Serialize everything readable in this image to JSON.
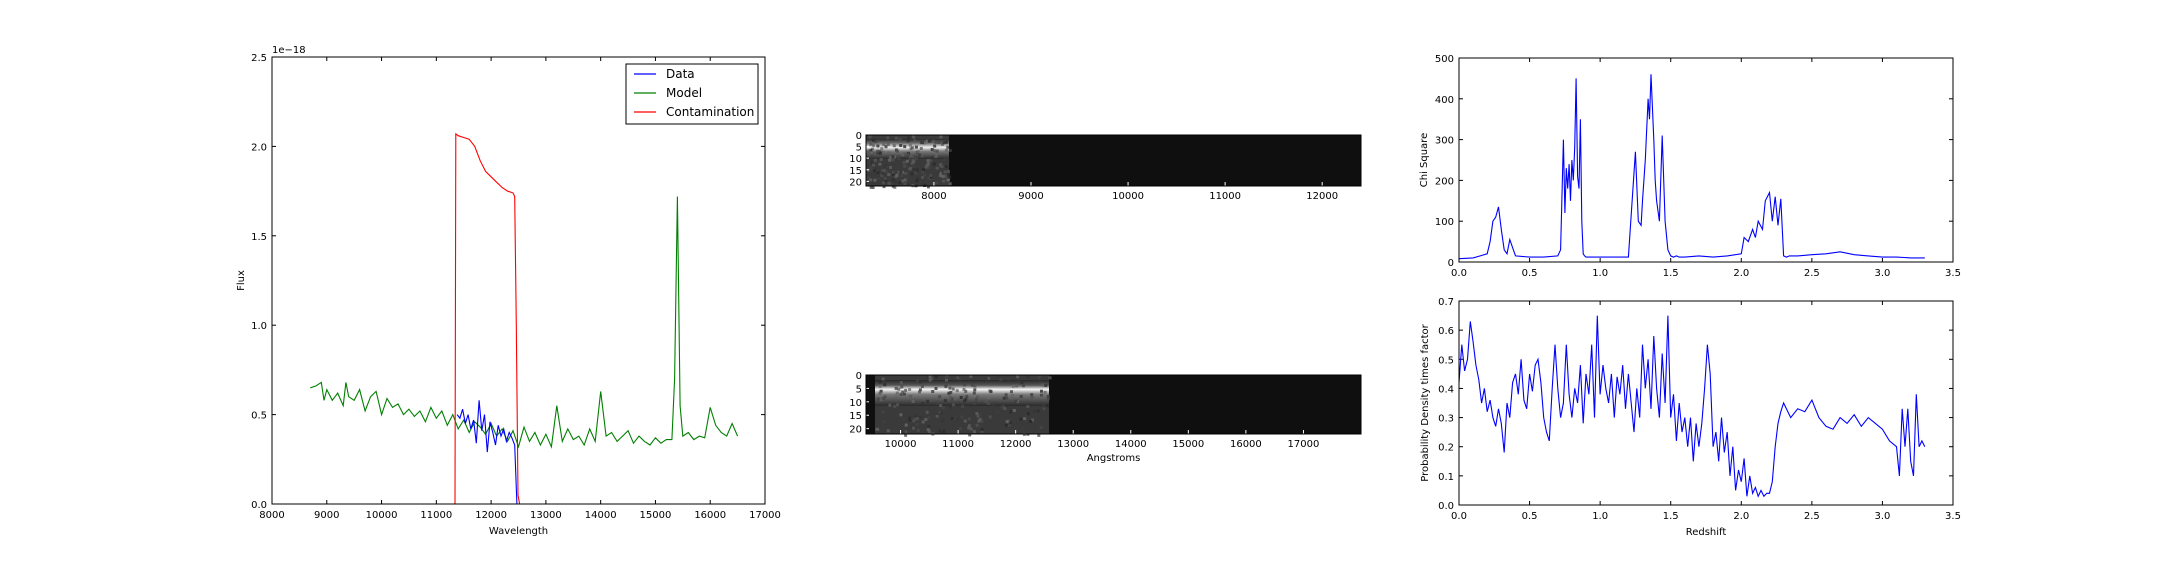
{
  "chart_data": [
    {
      "type": "line",
      "panel": "spectrum",
      "xlabel": "Wavelength",
      "ylabel": "Flux",
      "offset_label": "1e−18",
      "xlim": [
        8000,
        17000
      ],
      "ylim": [
        0,
        2.5
      ],
      "xticks": [
        8000,
        9000,
        10000,
        11000,
        12000,
        13000,
        14000,
        15000,
        16000,
        17000
      ],
      "yticks": [
        0.0,
        0.5,
        1.0,
        1.5,
        2.0,
        2.5
      ],
      "ytick_labels": [
        "0.0",
        "0.5",
        "1.0",
        "1.5",
        "2.0",
        "2.5"
      ],
      "legend_position": "top-right",
      "series": [
        {
          "name": "Data",
          "color": "#0000ff",
          "x": [
            11380,
            11430,
            11480,
            11530,
            11580,
            11630,
            11680,
            11730,
            11780,
            11830,
            11880,
            11930,
            11980,
            12030,
            12080,
            12130,
            12180,
            12230,
            12280,
            12330,
            12380,
            12430,
            12470
          ],
          "y": [
            0.5,
            0.48,
            0.53,
            0.45,
            0.5,
            0.42,
            0.47,
            0.34,
            0.58,
            0.41,
            0.5,
            0.29,
            0.46,
            0.4,
            0.33,
            0.44,
            0.38,
            0.42,
            0.35,
            0.4,
            0.37,
            0.33,
            0.0
          ]
        },
        {
          "name": "Model",
          "color": "#008000",
          "x": [
            8700,
            8800,
            8900,
            8950,
            9000,
            9100,
            9200,
            9300,
            9350,
            9400,
            9500,
            9600,
            9700,
            9800,
            9900,
            10000,
            10100,
            10200,
            10300,
            10400,
            10500,
            10600,
            10700,
            10800,
            10900,
            11000,
            11100,
            11200,
            11300,
            11400,
            11500,
            11600,
            11700,
            11800,
            11900,
            12000,
            12100,
            12200,
            12300,
            12400,
            12500,
            12600,
            12700,
            12800,
            12900,
            13000,
            13100,
            13200,
            13300,
            13400,
            13500,
            13600,
            13700,
            13800,
            13900,
            14000,
            14100,
            14200,
            14300,
            14400,
            14500,
            14600,
            14700,
            14800,
            14900,
            15000,
            15100,
            15200,
            15300,
            15350,
            15400,
            15450,
            15500,
            15600,
            15700,
            15800,
            15900,
            16000,
            16100,
            16200,
            16300,
            16400,
            16500
          ],
          "y": [
            0.65,
            0.66,
            0.68,
            0.58,
            0.64,
            0.58,
            0.62,
            0.55,
            0.68,
            0.6,
            0.58,
            0.64,
            0.52,
            0.6,
            0.63,
            0.5,
            0.59,
            0.54,
            0.56,
            0.5,
            0.53,
            0.49,
            0.52,
            0.46,
            0.54,
            0.48,
            0.52,
            0.44,
            0.5,
            0.42,
            0.47,
            0.4,
            0.46,
            0.43,
            0.39,
            0.45,
            0.38,
            0.42,
            0.35,
            0.41,
            0.32,
            0.43,
            0.35,
            0.4,
            0.33,
            0.39,
            0.32,
            0.55,
            0.35,
            0.42,
            0.36,
            0.38,
            0.33,
            0.42,
            0.35,
            0.63,
            0.38,
            0.4,
            0.35,
            0.38,
            0.41,
            0.34,
            0.38,
            0.35,
            0.33,
            0.37,
            0.34,
            0.36,
            0.36,
            0.7,
            1.72,
            0.55,
            0.38,
            0.4,
            0.36,
            0.38,
            0.37,
            0.54,
            0.44,
            0.4,
            0.38,
            0.45,
            0.38
          ]
        },
        {
          "name": "Contamination",
          "color": "#ff0000",
          "x": [
            8000,
            11340,
            11355,
            11400,
            11500,
            11600,
            11700,
            11800,
            11900,
            12000,
            12100,
            12200,
            12300,
            12400,
            12430,
            12460,
            12490,
            12520,
            16500
          ],
          "y": [
            0.0,
            0.0,
            2.07,
            2.06,
            2.05,
            2.04,
            2.0,
            1.92,
            1.86,
            1.83,
            1.8,
            1.77,
            1.75,
            1.74,
            1.72,
            1.0,
            0.05,
            0.0,
            0.0
          ]
        }
      ]
    },
    {
      "type": "heatmap",
      "panel": "spectrum-2d-top",
      "xticks": [
        8000,
        9000,
        10000,
        11000,
        12000
      ],
      "yticks": [
        0,
        5,
        10,
        15,
        20
      ],
      "xlim": [
        7300,
        12400
      ],
      "ylim": [
        22,
        0
      ]
    },
    {
      "type": "heatmap",
      "panel": "spectrum-2d-bottom",
      "xlabel": "Angstroms",
      "xticks": [
        10000,
        11000,
        12000,
        13000,
        14000,
        15000,
        16000,
        17000
      ],
      "yticks": [
        0,
        5,
        10,
        15,
        20
      ],
      "xlim": [
        9400,
        18000
      ],
      "ylim": [
        22,
        0
      ]
    },
    {
      "type": "line",
      "panel": "chi-square",
      "ylabel": "Chi Square",
      "xlim": [
        0,
        3.5
      ],
      "ylim": [
        0,
        500
      ],
      "xticks": [
        0.0,
        0.5,
        1.0,
        1.5,
        2.0,
        2.5,
        3.0,
        3.5
      ],
      "yticks": [
        0,
        100,
        200,
        300,
        400,
        500
      ],
      "series": [
        {
          "color": "#0000ff",
          "x": [
            0.0,
            0.1,
            0.15,
            0.2,
            0.22,
            0.24,
            0.26,
            0.28,
            0.3,
            0.32,
            0.34,
            0.36,
            0.4,
            0.5,
            0.6,
            0.7,
            0.72,
            0.74,
            0.75,
            0.76,
            0.77,
            0.78,
            0.79,
            0.8,
            0.81,
            0.82,
            0.83,
            0.84,
            0.85,
            0.86,
            0.87,
            0.88,
            0.89,
            0.9,
            0.95,
            1.0,
            1.1,
            1.2,
            1.25,
            1.27,
            1.29,
            1.3,
            1.32,
            1.34,
            1.35,
            1.36,
            1.37,
            1.38,
            1.39,
            1.4,
            1.42,
            1.44,
            1.46,
            1.48,
            1.5,
            1.52,
            1.54,
            1.56,
            1.6,
            1.7,
            1.8,
            1.9,
            2.0,
            2.02,
            2.05,
            2.08,
            2.1,
            2.12,
            2.15,
            2.17,
            2.2,
            2.22,
            2.24,
            2.26,
            2.28,
            2.3,
            2.32,
            2.34,
            2.4,
            2.5,
            2.6,
            2.7,
            2.8,
            2.9,
            3.0,
            3.1,
            3.2,
            3.3
          ],
          "y": [
            8,
            10,
            15,
            20,
            50,
            100,
            110,
            135,
            80,
            30,
            20,
            55,
            15,
            12,
            12,
            15,
            30,
            300,
            120,
            230,
            180,
            240,
            150,
            250,
            200,
            280,
            450,
            210,
            180,
            350,
            100,
            20,
            15,
            12,
            12,
            12,
            12,
            12,
            270,
            100,
            90,
            150,
            250,
            400,
            350,
            460,
            380,
            300,
            200,
            150,
            100,
            310,
            100,
            30,
            15,
            12,
            15,
            12,
            12,
            15,
            12,
            15,
            20,
            60,
            50,
            80,
            60,
            100,
            80,
            150,
            170,
            100,
            160,
            90,
            155,
            15,
            12,
            15,
            15,
            18,
            20,
            25,
            18,
            15,
            12,
            12,
            10,
            10
          ]
        }
      ]
    },
    {
      "type": "line",
      "panel": "probability",
      "xlabel": "Redshift",
      "ylabel": "Probability Density times factor",
      "xlim": [
        0,
        3.5
      ],
      "ylim": [
        0,
        0.7
      ],
      "xticks": [
        0.0,
        0.5,
        1.0,
        1.5,
        2.0,
        2.5,
        3.0,
        3.5
      ],
      "yticks": [
        0.0,
        0.1,
        0.2,
        0.3,
        0.4,
        0.5,
        0.6,
        0.7
      ],
      "series": [
        {
          "color": "#0000ff",
          "x": [
            0.0,
            0.02,
            0.04,
            0.06,
            0.08,
            0.1,
            0.12,
            0.14,
            0.16,
            0.18,
            0.2,
            0.22,
            0.24,
            0.26,
            0.28,
            0.3,
            0.32,
            0.34,
            0.36,
            0.38,
            0.4,
            0.42,
            0.44,
            0.46,
            0.48,
            0.5,
            0.52,
            0.54,
            0.56,
            0.58,
            0.6,
            0.62,
            0.64,
            0.66,
            0.68,
            0.7,
            0.72,
            0.74,
            0.76,
            0.78,
            0.8,
            0.82,
            0.84,
            0.86,
            0.88,
            0.9,
            0.92,
            0.94,
            0.96,
            0.98,
            1.0,
            1.02,
            1.04,
            1.06,
            1.08,
            1.1,
            1.12,
            1.14,
            1.16,
            1.18,
            1.2,
            1.22,
            1.24,
            1.26,
            1.28,
            1.3,
            1.32,
            1.34,
            1.36,
            1.38,
            1.4,
            1.42,
            1.44,
            1.46,
            1.48,
            1.5,
            1.52,
            1.54,
            1.56,
            1.58,
            1.6,
            1.62,
            1.64,
            1.66,
            1.68,
            1.7,
            1.72,
            1.74,
            1.76,
            1.78,
            1.8,
            1.82,
            1.84,
            1.86,
            1.88,
            1.9,
            1.92,
            1.94,
            1.96,
            1.98,
            2.0,
            2.02,
            2.04,
            2.06,
            2.08,
            2.1,
            2.12,
            2.14,
            2.16,
            2.18,
            2.2,
            2.22,
            2.24,
            2.26,
            2.28,
            2.3,
            2.35,
            2.4,
            2.45,
            2.5,
            2.55,
            2.6,
            2.65,
            2.7,
            2.75,
            2.8,
            2.85,
            2.9,
            2.95,
            3.0,
            3.05,
            3.1,
            3.12,
            3.14,
            3.16,
            3.18,
            3.2,
            3.22,
            3.24,
            3.26,
            3.28,
            3.3
          ],
          "y": [
            0.42,
            0.55,
            0.46,
            0.5,
            0.63,
            0.56,
            0.48,
            0.43,
            0.35,
            0.4,
            0.32,
            0.36,
            0.3,
            0.27,
            0.33,
            0.28,
            0.18,
            0.35,
            0.3,
            0.42,
            0.45,
            0.38,
            0.5,
            0.36,
            0.33,
            0.45,
            0.39,
            0.48,
            0.5,
            0.42,
            0.3,
            0.25,
            0.22,
            0.4,
            0.55,
            0.4,
            0.3,
            0.35,
            0.55,
            0.38,
            0.3,
            0.4,
            0.35,
            0.48,
            0.28,
            0.45,
            0.38,
            0.55,
            0.3,
            0.65,
            0.38,
            0.48,
            0.4,
            0.35,
            0.45,
            0.3,
            0.44,
            0.38,
            0.48,
            0.33,
            0.45,
            0.35,
            0.25,
            0.4,
            0.3,
            0.55,
            0.4,
            0.5,
            0.33,
            0.58,
            0.4,
            0.3,
            0.52,
            0.35,
            0.65,
            0.3,
            0.38,
            0.22,
            0.35,
            0.25,
            0.3,
            0.2,
            0.3,
            0.15,
            0.28,
            0.2,
            0.28,
            0.4,
            0.55,
            0.45,
            0.2,
            0.25,
            0.15,
            0.3,
            0.18,
            0.25,
            0.1,
            0.2,
            0.05,
            0.12,
            0.08,
            0.16,
            0.03,
            0.1,
            0.04,
            0.06,
            0.03,
            0.05,
            0.03,
            0.04,
            0.04,
            0.08,
            0.2,
            0.28,
            0.32,
            0.35,
            0.3,
            0.33,
            0.32,
            0.36,
            0.3,
            0.27,
            0.26,
            0.3,
            0.28,
            0.31,
            0.27,
            0.3,
            0.28,
            0.26,
            0.22,
            0.2,
            0.1,
            0.33,
            0.2,
            0.33,
            0.15,
            0.1,
            0.38,
            0.2,
            0.22,
            0.2
          ]
        }
      ]
    }
  ]
}
